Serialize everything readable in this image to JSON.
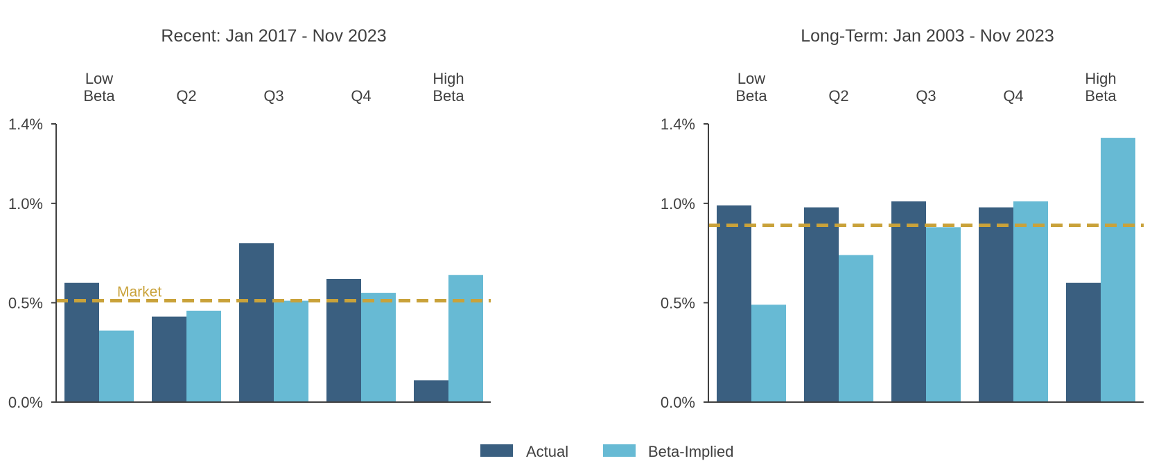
{
  "colors": {
    "actual": "#3a5f80",
    "implied": "#67bad4",
    "market": "#c9a23a",
    "axis": "#404040"
  },
  "legend": {
    "actual_label": "Actual",
    "implied_label": "Beta-Implied"
  },
  "chart_data": [
    {
      "type": "bar",
      "title": "Recent: Jan 2017 - Nov 2023",
      "categories": [
        [
          "Low",
          "Beta"
        ],
        [
          "Q2"
        ],
        [
          "Q3"
        ],
        [
          "Q4"
        ],
        [
          "High",
          "Beta"
        ]
      ],
      "series": [
        {
          "name": "Actual",
          "values": [
            0.6,
            0.43,
            0.8,
            0.62,
            0.11
          ]
        },
        {
          "name": "Beta-Implied",
          "values": [
            0.36,
            0.46,
            0.51,
            0.55,
            0.64
          ]
        }
      ],
      "market": 0.51,
      "market_label": "Market",
      "yticks": [
        "0.0%",
        "0.5%",
        "1.0%",
        "1.4%"
      ],
      "ytick_values": [
        0.0,
        0.5,
        1.0,
        1.4
      ],
      "ylim": [
        0,
        1.4
      ],
      "grid": false
    },
    {
      "type": "bar",
      "title": "Long-Term: Jan 2003 - Nov 2023",
      "categories": [
        [
          "Low",
          "Beta"
        ],
        [
          "Q2"
        ],
        [
          "Q3"
        ],
        [
          "Q4"
        ],
        [
          "High",
          "Beta"
        ]
      ],
      "series": [
        {
          "name": "Actual",
          "values": [
            0.99,
            0.98,
            1.01,
            0.98,
            0.6
          ]
        },
        {
          "name": "Beta-Implied",
          "values": [
            0.49,
            0.74,
            0.88,
            1.01,
            1.33
          ]
        }
      ],
      "market": 0.89,
      "yticks": [
        "0.0%",
        "0.5%",
        "1.0%",
        "1.4%"
      ],
      "ytick_values": [
        0.0,
        0.5,
        1.0,
        1.4
      ],
      "ylim": [
        0,
        1.4
      ],
      "grid": false
    }
  ]
}
